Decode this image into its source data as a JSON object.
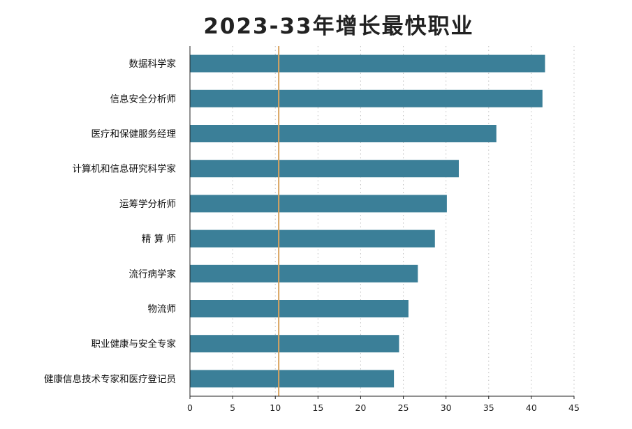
{
  "chart_data": {
    "type": "bar",
    "orientation": "horizontal",
    "title": "2023-33年增长最快职业",
    "categories": [
      "数据科学家",
      "信息安全分析师",
      "医疗和保健服务经理",
      "计算机和信息研究科学家",
      "运筹学分析师",
      "精 算 师",
      "流行病学家",
      "物流师",
      "职业健康与安全专家",
      "健康信息技术专家和医疗登记员"
    ],
    "values": [
      41.6,
      41.3,
      35.9,
      31.5,
      30.1,
      28.7,
      26.7,
      25.6,
      24.5,
      23.9
    ],
    "xlim": [
      0,
      45
    ],
    "xticks": [
      0,
      5,
      10,
      15,
      20,
      25,
      30,
      35,
      40,
      45
    ],
    "reference_line": 10.4,
    "grid": "vertical dotted",
    "colors": {
      "bar": "#3b7f98",
      "reference_line": "#d9a35f",
      "grid": "#bfbfbf",
      "axis": "#222222"
    }
  }
}
